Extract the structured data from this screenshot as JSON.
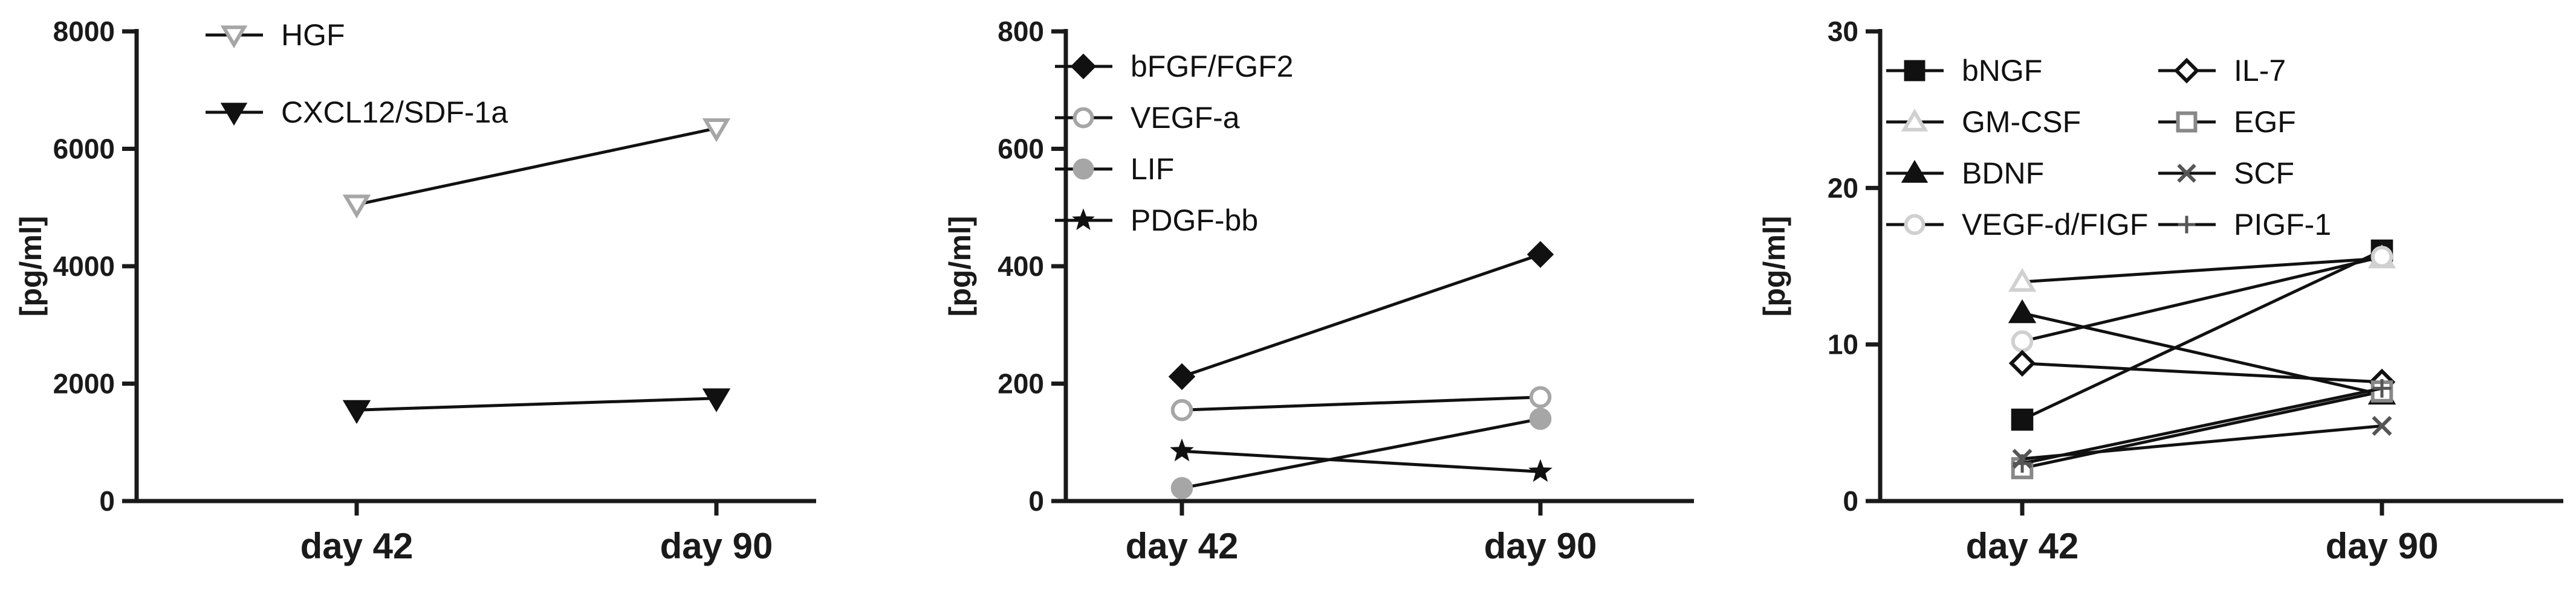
{
  "chart_data": [
    {
      "type": "line",
      "categories": [
        "day 42",
        "day 90"
      ],
      "ylabel": "[pg/ml]",
      "ylim": [
        0,
        8000
      ],
      "yticks": [
        0,
        2000,
        4000,
        6000,
        8000
      ],
      "legend_placement": "top-left",
      "series": [
        {
          "name": "HGF",
          "values": [
            5050,
            6350
          ],
          "marker": "triangle-down-open",
          "color": "#a6a6a6"
        },
        {
          "name": "CXCL12/SDF-1a",
          "values": [
            1550,
            1750
          ],
          "marker": "triangle-down-filled",
          "color": "#111111"
        }
      ]
    },
    {
      "type": "line",
      "categories": [
        "day 42",
        "day 90"
      ],
      "ylabel": "[pg/ml]",
      "ylim": [
        0,
        800
      ],
      "yticks": [
        0,
        200,
        400,
        600,
        800
      ],
      "legend_placement": "top-left",
      "series": [
        {
          "name": "bFGF/FGF2",
          "values": [
            212,
            420
          ],
          "marker": "diamond-filled",
          "color": "#111111"
        },
        {
          "name": "VEGF-a",
          "values": [
            155,
            177
          ],
          "marker": "circle-open",
          "color": "#a6a6a6"
        },
        {
          "name": "LIF",
          "values": [
            22,
            140
          ],
          "marker": "circle-filled",
          "color": "#a6a6a6"
        },
        {
          "name": "PDGF-bb",
          "values": [
            85,
            50
          ],
          "marker": "star",
          "color": "#111111"
        }
      ]
    },
    {
      "type": "line",
      "categories": [
        "day 42",
        "day 90"
      ],
      "ylabel": "[pg/ml]",
      "ylim": [
        0,
        30
      ],
      "yticks": [
        0,
        10,
        20,
        30
      ],
      "legend_placement": "top-left",
      "legend_columns": 2,
      "series": [
        {
          "name": "bNGF",
          "values": [
            5.2,
            16
          ],
          "marker": "square-filled",
          "color": "#111111"
        },
        {
          "name": "GM-CSF",
          "values": [
            14,
            15.5
          ],
          "marker": "triangle-open",
          "color": "#d0d0d0"
        },
        {
          "name": "BDNF",
          "values": [
            12,
            6.8
          ],
          "marker": "triangle-filled",
          "color": "#111111"
        },
        {
          "name": "VEGF-d/FIGF",
          "values": [
            10.2,
            15.6
          ],
          "marker": "circle-open",
          "color": "#d0d0d0"
        },
        {
          "name": "IL-7",
          "values": [
            8.8,
            7.6
          ],
          "marker": "diamond-open",
          "color": "#111111"
        },
        {
          "name": "EGF",
          "values": [
            2.1,
            7.0
          ],
          "marker": "square-open",
          "color": "#888888"
        },
        {
          "name": "SCF",
          "values": [
            2.7,
            4.8
          ],
          "marker": "x",
          "color": "#555555"
        },
        {
          "name": "PIGF-1",
          "values": [
            2.4,
            7.2
          ],
          "marker": "plus",
          "color": "#555555"
        }
      ]
    }
  ]
}
